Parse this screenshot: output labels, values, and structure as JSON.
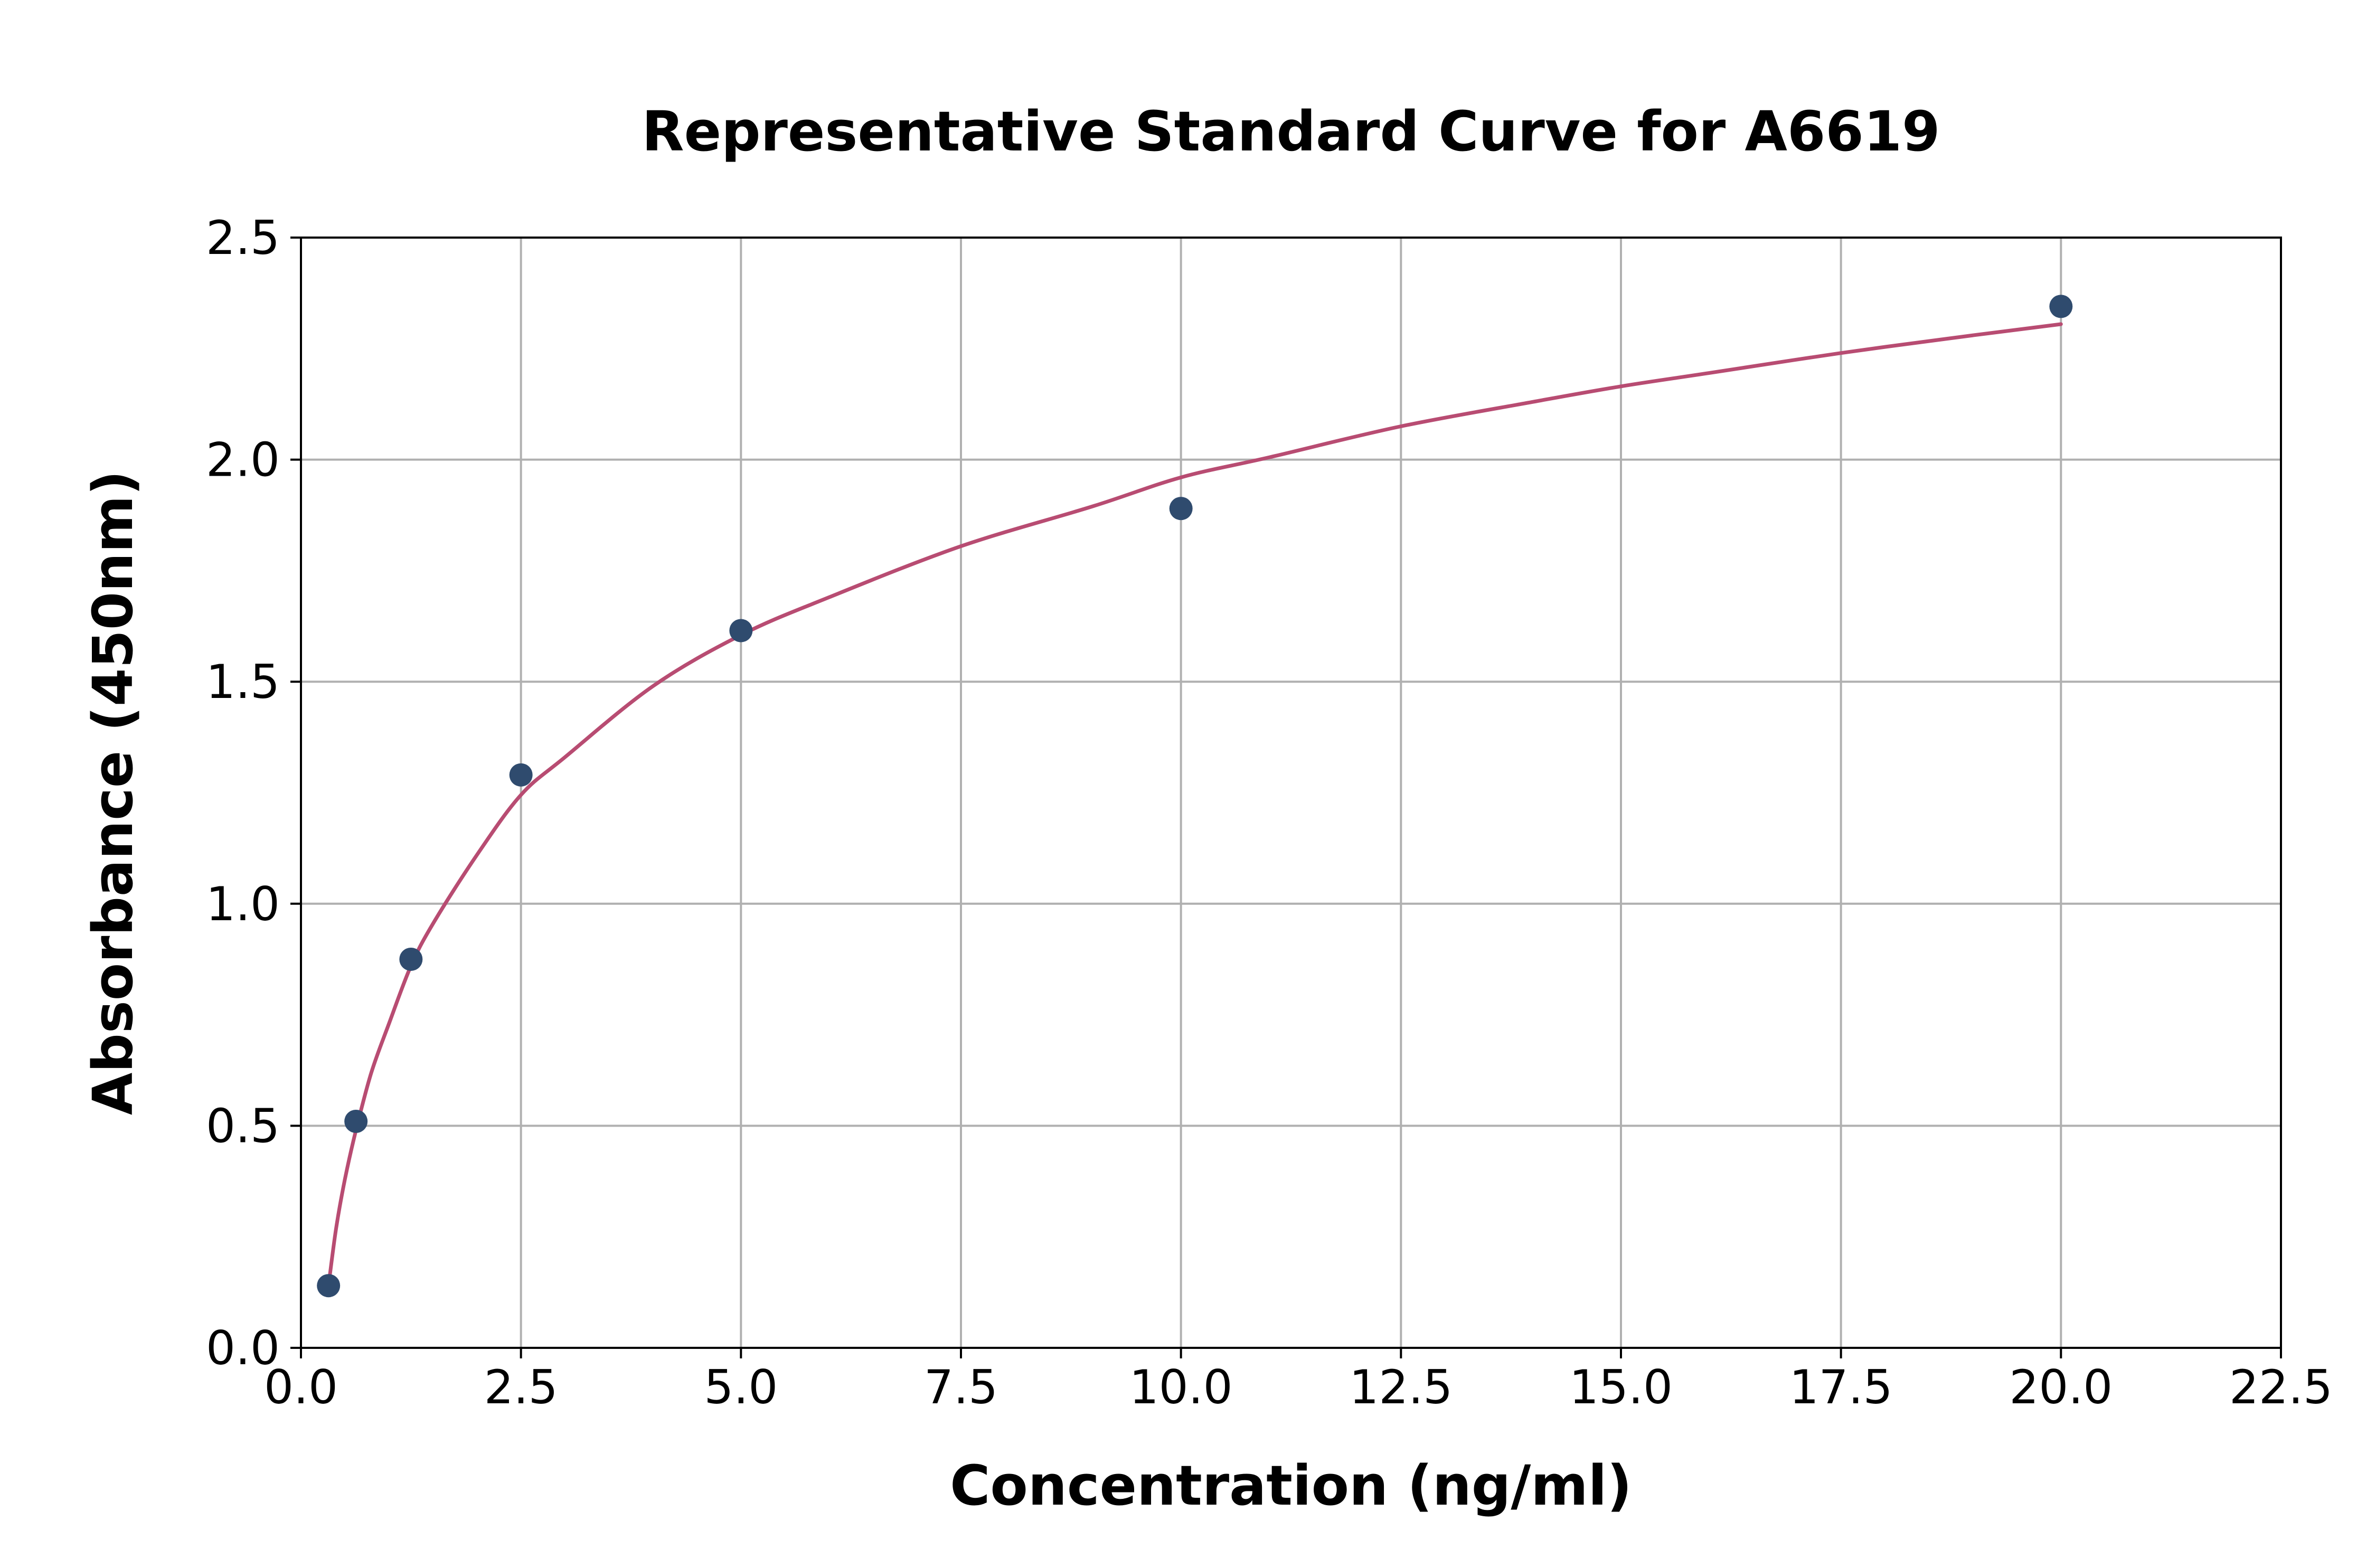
{
  "chart_data": {
    "type": "scatter",
    "title": "Representative Standard Curve for A6619",
    "xlabel": "Concentration (ng/ml)",
    "ylabel": "Absorbance (450nm)",
    "xlim": [
      0,
      22.5
    ],
    "ylim": [
      0,
      2.5
    ],
    "x_ticks": [
      "0.0",
      "2.5",
      "5.0",
      "7.5",
      "10.0",
      "12.5",
      "15.0",
      "17.5",
      "20.0",
      "22.5"
    ],
    "y_ticks": [
      "0.0",
      "0.5",
      "1.0",
      "1.5",
      "2.0",
      "2.5"
    ],
    "grid": true,
    "colors": {
      "points": "#2f4b6e",
      "curve": "#b84c72"
    },
    "series": [
      {
        "kind": "points",
        "x": [
          0.313,
          0.625,
          1.25,
          2.5,
          5.0,
          10.0,
          20.0
        ],
        "y": [
          0.14,
          0.51,
          0.875,
          1.29,
          1.615,
          1.89,
          2.345
        ]
      },
      {
        "kind": "fitted-curve",
        "x": [
          0.313,
          0.4,
          0.5,
          0.625,
          0.8,
          1.0,
          1.25,
          1.5,
          2.0,
          2.5,
          3.0,
          4.0,
          5.0,
          6.0,
          7.5,
          9.0,
          10.0,
          11.0,
          12.5,
          14.0,
          15.0,
          16.0,
          17.5,
          19.0,
          20.0
        ],
        "y": [
          0.14,
          0.27,
          0.38,
          0.49,
          0.62,
          0.73,
          0.86,
          0.955,
          1.11,
          1.245,
          1.33,
          1.49,
          1.605,
          1.69,
          1.805,
          1.895,
          1.96,
          2.005,
          2.075,
          2.13,
          2.165,
          2.195,
          2.24,
          2.28,
          2.305
        ]
      }
    ]
  }
}
